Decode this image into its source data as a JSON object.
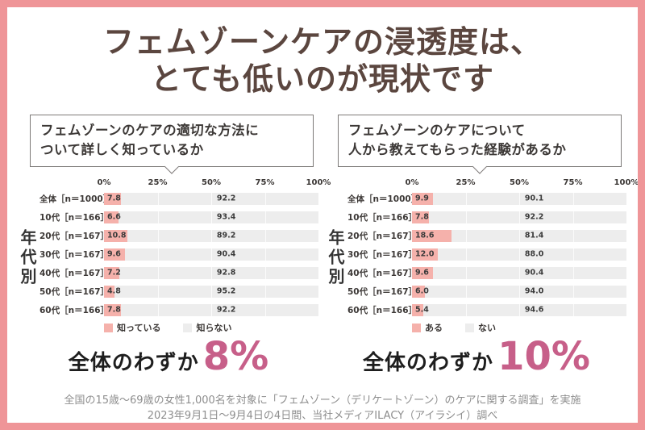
{
  "title": {
    "line1": "フェムゾーンケアの浸透度は、",
    "line2": "とても低いのが現状です"
  },
  "panels": [
    {
      "question_line1": "フェムゾーンのケアの適切な方法に",
      "question_line2": "ついて詳しく知っているか",
      "summary_prefix": "全体のわずか",
      "summary_value": "8%"
    },
    {
      "question_line1": "フェムゾーンのケアについて",
      "question_line2": "人から教えてもらった経験があるか",
      "summary_prefix": "全体のわずか",
      "summary_value": "10%"
    }
  ],
  "chart_data": [
    {
      "type": "bar",
      "orientation": "horizontal",
      "stacked": true,
      "title": "フェムゾーンのケアの適切な方法について詳しく知っているか",
      "ylabel": "年代別",
      "xlim": [
        0,
        100
      ],
      "x_ticks": [
        "0%",
        "25%",
        "50%",
        "75%",
        "100%"
      ],
      "grid": true,
      "legend_position": "bottom",
      "categories": [
        "全体［n＝1000］",
        "10代［n＝166］",
        "20代［n＝167］",
        "30代［n＝167］",
        "40代［n＝167］",
        "50代［n＝167］",
        "60代［n＝166］"
      ],
      "series": [
        {
          "name": "知っている",
          "color": "#f5b1ab",
          "values": [
            7.8,
            6.6,
            10.8,
            9.6,
            7.2,
            4.8,
            7.8
          ]
        },
        {
          "name": "知らない",
          "color": "#ededed",
          "values": [
            92.2,
            93.4,
            89.2,
            90.4,
            92.8,
            95.2,
            92.2
          ]
        }
      ]
    },
    {
      "type": "bar",
      "orientation": "horizontal",
      "stacked": true,
      "title": "フェムゾーンのケアについて人から教えてもらった経験があるか",
      "ylabel": "年代別",
      "xlim": [
        0,
        100
      ],
      "x_ticks": [
        "0%",
        "25%",
        "50%",
        "75%",
        "100%"
      ],
      "grid": true,
      "legend_position": "bottom",
      "categories": [
        "全体［n＝1000］",
        "10代［n＝166］",
        "20代［n＝167］",
        "30代［n＝167］",
        "40代［n＝167］",
        "50代［n＝167］",
        "60代［n＝166］"
      ],
      "series": [
        {
          "name": "ある",
          "color": "#f5b1ab",
          "values": [
            9.9,
            7.8,
            18.6,
            12.0,
            9.6,
            6.0,
            5.4
          ]
        },
        {
          "name": "ない",
          "color": "#ededed",
          "values": [
            90.1,
            92.2,
            81.4,
            88.0,
            90.4,
            94.0,
            94.6
          ]
        }
      ]
    }
  ],
  "footer": {
    "line1": "全国の15歳～69歳の女性1,000名を対象に「フェムゾーン（デリケートゾーン）のケアに関する調査」を実施",
    "line2": "2023年9月1日～9月4日の4日間、当社メディアILACY（アイラシイ）調べ"
  },
  "colors": {
    "frame_border": "#ef9598",
    "title_text": "#5b463f",
    "bar_yes": "#f5b1ab",
    "bar_no": "#ededed",
    "summary_accent": "#c75f89",
    "footer_text": "#8e8e8e"
  }
}
